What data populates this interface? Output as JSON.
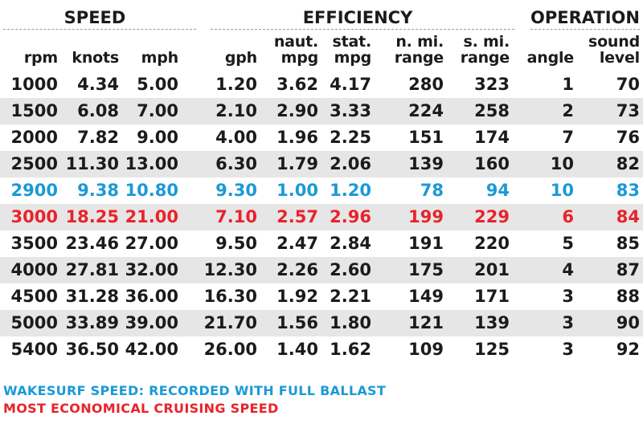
{
  "colors": {
    "highlight_blue": "#1a9ad6",
    "highlight_red": "#e8232b",
    "stripe": "#e6e6e6"
  },
  "groups": {
    "speed": "SPEED",
    "efficiency": "EFFICIENCY",
    "operation": "OPERATION"
  },
  "columns": [
    {
      "line1": "",
      "line2": "rpm"
    },
    {
      "line1": "",
      "line2": "knots"
    },
    {
      "line1": "",
      "line2": "mph"
    },
    {
      "line1": "",
      "line2": "gph"
    },
    {
      "line1": "naut.",
      "line2": "mpg"
    },
    {
      "line1": "stat.",
      "line2": "mpg"
    },
    {
      "line1": "n. mi.",
      "line2": "range"
    },
    {
      "line1": "s. mi.",
      "line2": "range"
    },
    {
      "line1": "",
      "line2": "angle"
    },
    {
      "line1": "sound",
      "line2": "level"
    }
  ],
  "rows": [
    {
      "highlight": "none",
      "cells": [
        "1000",
        "4.34",
        "5.00",
        "1.20",
        "3.62",
        "4.17",
        "280",
        "323",
        "1",
        "70"
      ]
    },
    {
      "highlight": "none",
      "cells": [
        "1500",
        "6.08",
        "7.00",
        "2.10",
        "2.90",
        "3.33",
        "224",
        "258",
        "2",
        "73"
      ]
    },
    {
      "highlight": "none",
      "cells": [
        "2000",
        "7.82",
        "9.00",
        "4.00",
        "1.96",
        "2.25",
        "151",
        "174",
        "7",
        "76"
      ]
    },
    {
      "highlight": "none",
      "cells": [
        "2500",
        "11.30",
        "13.00",
        "6.30",
        "1.79",
        "2.06",
        "139",
        "160",
        "10",
        "82"
      ]
    },
    {
      "highlight": "blue",
      "cells": [
        "2900",
        "9.38",
        "10.80",
        "9.30",
        "1.00",
        "1.20",
        "78",
        "94",
        "10",
        "83"
      ]
    },
    {
      "highlight": "red",
      "cells": [
        "3000",
        "18.25",
        "21.00",
        "7.10",
        "2.57",
        "2.96",
        "199",
        "229",
        "6",
        "84"
      ]
    },
    {
      "highlight": "none",
      "cells": [
        "3500",
        "23.46",
        "27.00",
        "9.50",
        "2.47",
        "2.84",
        "191",
        "220",
        "5",
        "85"
      ]
    },
    {
      "highlight": "none",
      "cells": [
        "4000",
        "27.81",
        "32.00",
        "12.30",
        "2.26",
        "2.60",
        "175",
        "201",
        "4",
        "87"
      ]
    },
    {
      "highlight": "none",
      "cells": [
        "4500",
        "31.28",
        "36.00",
        "16.30",
        "1.92",
        "2.21",
        "149",
        "171",
        "3",
        "88"
      ]
    },
    {
      "highlight": "none",
      "cells": [
        "5000",
        "33.89",
        "39.00",
        "21.70",
        "1.56",
        "1.80",
        "121",
        "139",
        "3",
        "90"
      ]
    },
    {
      "highlight": "none",
      "cells": [
        "5400",
        "36.50",
        "42.00",
        "26.00",
        "1.40",
        "1.62",
        "109",
        "125",
        "3",
        "92"
      ]
    }
  ],
  "notes": {
    "blue": "WAKESURF SPEED: RECORDED WITH FULL BALLAST",
    "red": "MOST ECONOMICAL CRUISING SPEED"
  },
  "chart_data": {
    "type": "table",
    "headers": [
      "rpm",
      "knots",
      "mph",
      "gph",
      "naut. mpg",
      "stat. mpg",
      "n. mi. range",
      "s. mi. range",
      "angle",
      "sound level"
    ],
    "header_groups": [
      {
        "name": "SPEED",
        "columns": [
          "rpm",
          "knots",
          "mph"
        ]
      },
      {
        "name": "EFFICIENCY",
        "columns": [
          "gph",
          "naut. mpg",
          "stat. mpg",
          "n. mi. range",
          "s. mi. range"
        ]
      },
      {
        "name": "OPERATION",
        "columns": [
          "angle",
          "sound level"
        ]
      }
    ],
    "rows": [
      [
        1000,
        4.34,
        5.0,
        1.2,
        3.62,
        4.17,
        280,
        323,
        1,
        70
      ],
      [
        1500,
        6.08,
        7.0,
        2.1,
        2.9,
        3.33,
        224,
        258,
        2,
        73
      ],
      [
        2000,
        7.82,
        9.0,
        4.0,
        1.96,
        2.25,
        151,
        174,
        7,
        76
      ],
      [
        2500,
        11.3,
        13.0,
        6.3,
        1.79,
        2.06,
        139,
        160,
        10,
        82
      ],
      [
        2900,
        9.38,
        10.8,
        9.3,
        1.0,
        1.2,
        78,
        94,
        10,
        83
      ],
      [
        3000,
        18.25,
        21.0,
        7.1,
        2.57,
        2.96,
        199,
        229,
        6,
        84
      ],
      [
        3500,
        23.46,
        27.0,
        9.5,
        2.47,
        2.84,
        191,
        220,
        5,
        85
      ],
      [
        4000,
        27.81,
        32.0,
        12.3,
        2.26,
        2.6,
        175,
        201,
        4,
        87
      ],
      [
        4500,
        31.28,
        36.0,
        16.3,
        1.92,
        2.21,
        149,
        171,
        3,
        88
      ],
      [
        5000,
        33.89,
        39.0,
        21.7,
        1.56,
        1.8,
        121,
        139,
        3,
        90
      ],
      [
        5400,
        36.5,
        42.0,
        26.0,
        1.4,
        1.62,
        109,
        125,
        3,
        92
      ]
    ],
    "highlighted_rows": {
      "2900": "blue",
      "3000": "red"
    }
  }
}
